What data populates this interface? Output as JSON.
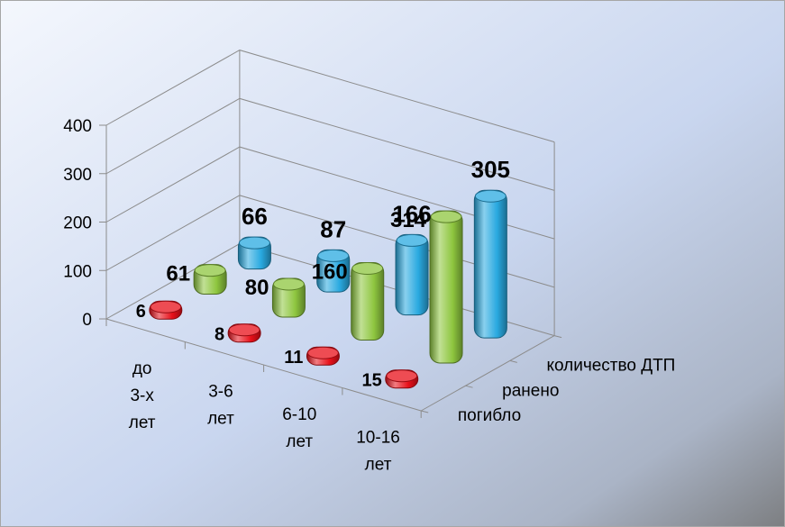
{
  "chart_data": {
    "type": "bar",
    "title": "",
    "categories": [
      "до 3-х лет",
      "3-6 лет",
      "6-10 лет",
      "10-16 лет"
    ],
    "series": [
      {
        "name": "погибло",
        "values": [
          6,
          8,
          11,
          15
        ],
        "color": "#e8101a"
      },
      {
        "name": "ранено",
        "values": [
          61,
          80,
          160,
          314
        ],
        "color": "#8ec63f"
      },
      {
        "name": "количество ДТП",
        "values": [
          66,
          87,
          166,
          305
        ],
        "color": "#29a9e0"
      }
    ],
    "yticks": [
      0,
      100,
      200,
      300,
      400
    ],
    "ylim": [
      0,
      400
    ],
    "xlabel": "",
    "ylabel": "",
    "grid": true,
    "three_d": true
  }
}
